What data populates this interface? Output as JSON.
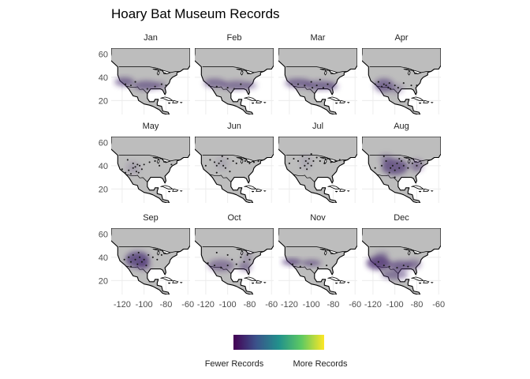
{
  "title": "Hoary Bat Museum Records",
  "colors": {
    "land": "#bdbdbd",
    "coast": "#000000",
    "grid": "#ececec",
    "point": "#1a1a1a",
    "density_low": "#45286f",
    "viridis": [
      "#440154",
      "#3b528b",
      "#21918c",
      "#5ec962",
      "#fde725"
    ]
  },
  "chart_data": {
    "type": "heatmap",
    "xlabel": "",
    "ylabel": "",
    "xlim": [
      -130,
      -58
    ],
    "ylim": [
      8,
      65
    ],
    "x_ticks": [
      -120,
      -100,
      -80,
      -60
    ],
    "y_ticks": [
      20,
      40,
      60
    ],
    "legend": {
      "position": "bottom",
      "low_label": "Fewer Records",
      "high_label": "More Records"
    },
    "panels": [
      {
        "month": "Jan",
        "density": [
          [
            -118,
            36,
            9,
            4,
            0.55
          ],
          [
            -98,
            33,
            12,
            4,
            0.55
          ],
          [
            -85,
            33,
            5,
            3,
            0.4
          ]
        ],
        "records": [
          [
            -117,
            34
          ],
          [
            -112,
            33
          ],
          [
            -108,
            36
          ],
          [
            -97,
            30
          ],
          [
            -90,
            32
          ],
          [
            -84,
            34
          ],
          [
            -80,
            33
          ]
        ]
      },
      {
        "month": "Feb",
        "density": [
          [
            -112,
            35,
            10,
            4,
            0.5
          ],
          [
            -92,
            33,
            14,
            4,
            0.5
          ],
          [
            -78,
            33,
            5,
            3,
            0.35
          ]
        ],
        "records": [
          [
            -117,
            33
          ],
          [
            -110,
            32
          ],
          [
            -100,
            31
          ],
          [
            -94,
            30
          ],
          [
            -88,
            34
          ]
        ]
      },
      {
        "month": "Mar",
        "density": [
          [
            -112,
            35,
            12,
            4,
            0.55
          ],
          [
            -92,
            33,
            14,
            4,
            0.55
          ],
          [
            -80,
            32,
            5,
            3,
            0.35
          ]
        ],
        "records": [
          [
            -118,
            34
          ],
          [
            -112,
            34
          ],
          [
            -106,
            33
          ],
          [
            -99,
            31
          ],
          [
            -95,
            33
          ],
          [
            -92,
            38
          ],
          [
            -89,
            31
          ],
          [
            -100,
            36
          ],
          [
            -85,
            34
          ]
        ]
      },
      {
        "month": "Apr",
        "density": [
          [
            -110,
            33,
            9,
            6,
            0.55
          ],
          [
            -98,
            30,
            6,
            4,
            0.3
          ]
        ],
        "records": [
          [
            -118,
            34
          ],
          [
            -115,
            36
          ],
          [
            -112,
            32
          ],
          [
            -110,
            34
          ],
          [
            -108,
            33
          ],
          [
            -106,
            31
          ],
          [
            -104,
            30
          ],
          [
            -105,
            35
          ],
          [
            -100,
            33
          ],
          [
            -97,
            31
          ],
          [
            -92,
            35
          ],
          [
            -85,
            33
          ],
          [
            -80,
            33
          ]
        ]
      },
      {
        "month": "May",
        "density": [
          [
            -110,
            38,
            6,
            5,
            0.2
          ]
        ],
        "records": [
          [
            -120,
            37
          ],
          [
            -117,
            34
          ],
          [
            -114,
            36
          ],
          [
            -112,
            33
          ],
          [
            -110,
            38
          ],
          [
            -108,
            39
          ],
          [
            -106,
            41
          ],
          [
            -104,
            40
          ],
          [
            -107,
            35
          ],
          [
            -100,
            41
          ],
          [
            -95,
            43
          ],
          [
            -90,
            44
          ],
          [
            -86,
            40
          ],
          [
            -80,
            43
          ],
          [
            -75,
            41
          ],
          [
            -105,
            34
          ],
          [
            -102,
            37
          ],
          [
            -110,
            42
          ],
          [
            -115,
            45
          ]
        ]
      },
      {
        "month": "Jun",
        "density": [
          [
            -105,
            42,
            6,
            5,
            0.15
          ]
        ],
        "records": [
          [
            -120,
            40
          ],
          [
            -116,
            45
          ],
          [
            -112,
            43
          ],
          [
            -110,
            40
          ],
          [
            -108,
            42
          ],
          [
            -106,
            44
          ],
          [
            -104,
            40
          ],
          [
            -102,
            38
          ],
          [
            -100,
            46
          ],
          [
            -95,
            44
          ],
          [
            -92,
            42
          ],
          [
            -88,
            46
          ],
          [
            -84,
            44
          ],
          [
            -80,
            42
          ],
          [
            -76,
            43
          ],
          [
            -72,
            44
          ],
          [
            -110,
            34
          ],
          [
            -98,
            35
          ],
          [
            -105,
            48
          ]
        ]
      },
      {
        "month": "Jul",
        "density": [
          [
            -105,
            43,
            5,
            6,
            0.15
          ]
        ],
        "records": [
          [
            -120,
            42
          ],
          [
            -116,
            46
          ],
          [
            -112,
            44
          ],
          [
            -108,
            48
          ],
          [
            -106,
            40
          ],
          [
            -105,
            44
          ],
          [
            -104,
            37
          ],
          [
            -103,
            42
          ],
          [
            -102,
            46
          ],
          [
            -100,
            40
          ],
          [
            -98,
            44
          ],
          [
            -95,
            47
          ],
          [
            -92,
            44
          ],
          [
            -88,
            42
          ],
          [
            -85,
            46
          ],
          [
            -82,
            43
          ],
          [
            -78,
            44
          ],
          [
            -74,
            45
          ],
          [
            -70,
            44
          ],
          [
            -100,
            50
          ],
          [
            -110,
            38
          ]
        ]
      },
      {
        "month": "Aug",
        "density": [
          [
            -100,
            39,
            12,
            7,
            0.65
          ],
          [
            -80,
            40,
            6,
            5,
            0.45
          ],
          [
            -108,
            46,
            6,
            4,
            0.35
          ]
        ],
        "records": [
          [
            -118,
            38
          ],
          [
            -112,
            40
          ],
          [
            -108,
            44
          ],
          [
            -104,
            38
          ],
          [
            -102,
            40
          ],
          [
            -100,
            36
          ],
          [
            -98,
            42
          ],
          [
            -96,
            38
          ],
          [
            -94,
            44
          ],
          [
            -92,
            40
          ],
          [
            -88,
            38
          ],
          [
            -84,
            42
          ],
          [
            -80,
            40
          ],
          [
            -76,
            42
          ],
          [
            -105,
            34
          ],
          [
            -100,
            30
          ],
          [
            -110,
            48
          ],
          [
            -96,
            46
          ]
        ]
      },
      {
        "month": "Sep",
        "density": [
          [
            -106,
            38,
            11,
            7,
            0.7
          ],
          [
            -100,
            33,
            6,
            4,
            0.45
          ]
        ],
        "records": [
          [
            -118,
            38
          ],
          [
            -114,
            40
          ],
          [
            -112,
            36
          ],
          [
            -110,
            42
          ],
          [
            -108,
            38
          ],
          [
            -106,
            34
          ],
          [
            -104,
            40
          ],
          [
            -102,
            36
          ],
          [
            -100,
            38
          ],
          [
            -98,
            33
          ],
          [
            -96,
            42
          ],
          [
            -105,
            44
          ],
          [
            -112,
            32
          ],
          [
            -92,
            40
          ],
          [
            -88,
            38
          ],
          [
            -84,
            42
          ]
        ]
      },
      {
        "month": "Oct",
        "density": [
          [
            -106,
            33,
            12,
            5,
            0.45
          ],
          [
            -84,
            32,
            6,
            4,
            0.45
          ],
          [
            -82,
            40,
            5,
            3,
            0.3
          ]
        ],
        "records": [
          [
            -118,
            35
          ],
          [
            -112,
            33
          ],
          [
            -106,
            31
          ],
          [
            -100,
            33
          ],
          [
            -96,
            38
          ],
          [
            -92,
            34
          ],
          [
            -88,
            40
          ],
          [
            -85,
            36
          ],
          [
            -82,
            42
          ],
          [
            -80,
            38
          ],
          [
            -100,
            42
          ],
          [
            -110,
            44
          ]
        ]
      },
      {
        "month": "Nov",
        "density": [
          [
            -118,
            36,
            9,
            3,
            0.6
          ],
          [
            -100,
            35,
            9,
            3,
            0.5
          ]
        ],
        "records": [
          [
            -117,
            34
          ],
          [
            -110,
            32
          ],
          [
            -100,
            34
          ],
          [
            -94,
            31
          ],
          [
            -86,
            33
          ]
        ]
      },
      {
        "month": "Dec",
        "density": [
          [
            -115,
            35,
            11,
            6,
            0.75
          ],
          [
            -95,
            33,
            10,
            4,
            0.6
          ],
          [
            -83,
            34,
            7,
            4,
            0.45
          ],
          [
            -100,
            25,
            12,
            4,
            0.5
          ],
          [
            -112,
            42,
            6,
            3,
            0.35
          ]
        ],
        "records": [
          [
            -118,
            34
          ],
          [
            -115,
            36
          ],
          [
            -110,
            33
          ],
          [
            -105,
            32
          ],
          [
            -98,
            31
          ],
          [
            -92,
            33
          ],
          [
            -88,
            32
          ]
        ]
      }
    ]
  }
}
